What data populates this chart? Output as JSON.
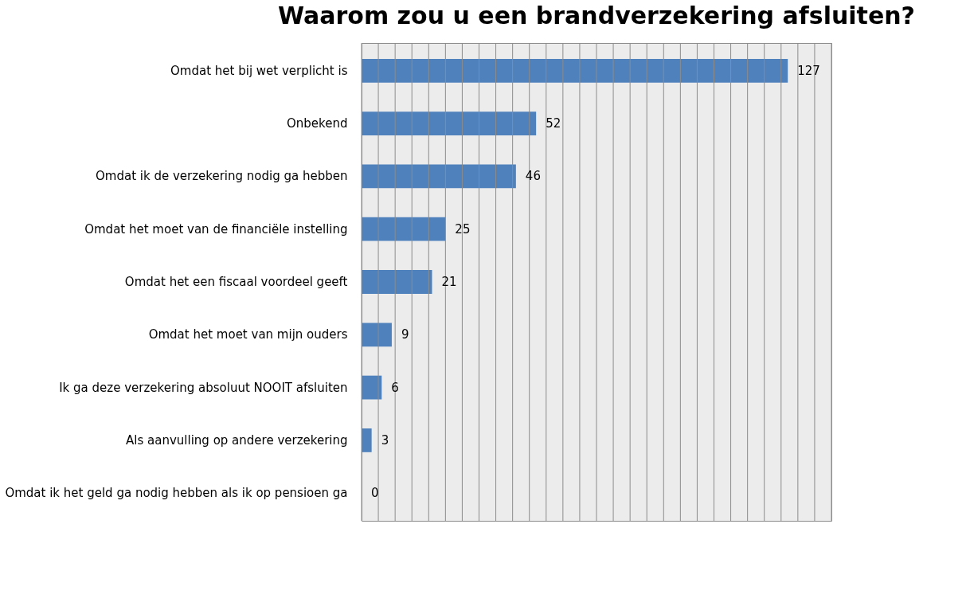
{
  "chart_data": {
    "type": "bar",
    "orientation": "horizontal",
    "title": "Waarom zou u een brandverzekering afsluiten?",
    "categories": [
      "Omdat het bij wet verplicht is",
      "Onbekend",
      "Omdat ik de verzekering nodig ga hebben",
      "Omdat het moet van de financiële instelling",
      "Omdat het een fiscaal voordeel geeft",
      "Omdat het moet van mijn ouders",
      "Ik ga deze verzekering absoluut NOOIT afsluiten",
      "Als aanvulling op andere verzekering",
      "Omdat ik het geld ga nodig hebben als ik op pensioen ga"
    ],
    "values": [
      127,
      52,
      46,
      25,
      21,
      9,
      6,
      3,
      0
    ],
    "color": "#4f81bd",
    "xlim": [
      0,
      140
    ],
    "xticks": [
      {
        "value": 0,
        "label": null
      },
      {
        "value": 5,
        "label": null
      },
      {
        "value": 10,
        "label": null
      },
      {
        "value": 15,
        "label": null
      },
      {
        "value": 20,
        "label": null
      },
      {
        "value": 25,
        "label": null
      },
      {
        "value": 30,
        "label": null
      },
      {
        "value": 35,
        "label": null
      },
      {
        "value": 40,
        "label": null
      },
      {
        "value": 45,
        "label": null
      },
      {
        "value": 50,
        "label": null
      },
      {
        "value": 55,
        "label": null
      },
      {
        "value": 60,
        "label": null
      },
      {
        "value": 65,
        "label": null
      },
      {
        "value": 70,
        "label": null
      },
      {
        "value": 75,
        "label": null
      },
      {
        "value": 80,
        "label": null
      },
      {
        "value": 85,
        "label": null
      },
      {
        "value": 90,
        "label": null
      },
      {
        "value": 95,
        "label": null
      },
      {
        "value": 100,
        "label": null
      },
      {
        "value": 105,
        "label": null
      },
      {
        "value": 110,
        "label": null
      },
      {
        "value": 115,
        "label": null
      },
      {
        "value": 120,
        "label": null
      },
      {
        "value": 125,
        "label": null
      },
      {
        "value": 130,
        "label": null
      },
      {
        "value": 135,
        "label": null
      },
      {
        "value": 140,
        "label": null
      }
    ],
    "grid": "x",
    "tick_labels": "y",
    "data_labels": true
  }
}
